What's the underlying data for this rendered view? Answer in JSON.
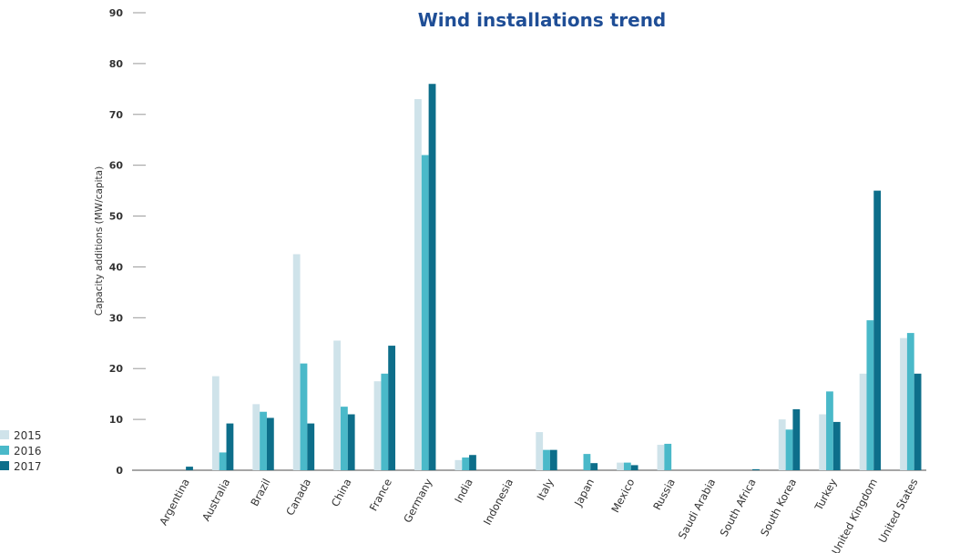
{
  "chart_data": {
    "type": "bar",
    "title": "Wind installations trend",
    "ylabel": "Capacity additions (MW/capita)",
    "xlabel": "",
    "ylim": [
      0,
      90
    ],
    "yticks": [
      0,
      10,
      20,
      30,
      40,
      50,
      60,
      70,
      80,
      90
    ],
    "grid": false,
    "legend_position": "bottom-left",
    "categories": [
      "Argentina",
      "Australia",
      "Brazil",
      "Canada",
      "China",
      "France",
      "Germany",
      "India",
      "Indonesia",
      "Italy",
      "Japan",
      "Mexico",
      "Russia",
      "Saudi Arabia",
      "South Africa",
      "South Korea",
      "Turkey",
      "United Kingdom",
      "United States"
    ],
    "series": [
      {
        "name": "2015",
        "color": "#cfe3ea",
        "values": [
          0,
          18.5,
          13,
          42.5,
          25.5,
          17.5,
          73,
          2,
          0,
          7.5,
          0,
          1.5,
          5,
          0,
          0,
          10,
          11,
          19,
          26
        ]
      },
      {
        "name": "2016",
        "color": "#4ab9c9",
        "values": [
          0,
          3.5,
          11.5,
          21,
          12.5,
          19,
          62,
          2.5,
          0,
          4,
          3.2,
          1.5,
          5.2,
          0,
          0,
          8,
          15.5,
          29.5,
          27
        ]
      },
      {
        "name": "2017",
        "color": "#0d6e8a",
        "values": [
          0.7,
          9.2,
          10.3,
          9.2,
          11,
          24.5,
          76,
          3,
          0,
          4,
          1.4,
          1,
          0,
          0,
          0.2,
          12,
          9.5,
          55,
          19
        ]
      }
    ]
  }
}
